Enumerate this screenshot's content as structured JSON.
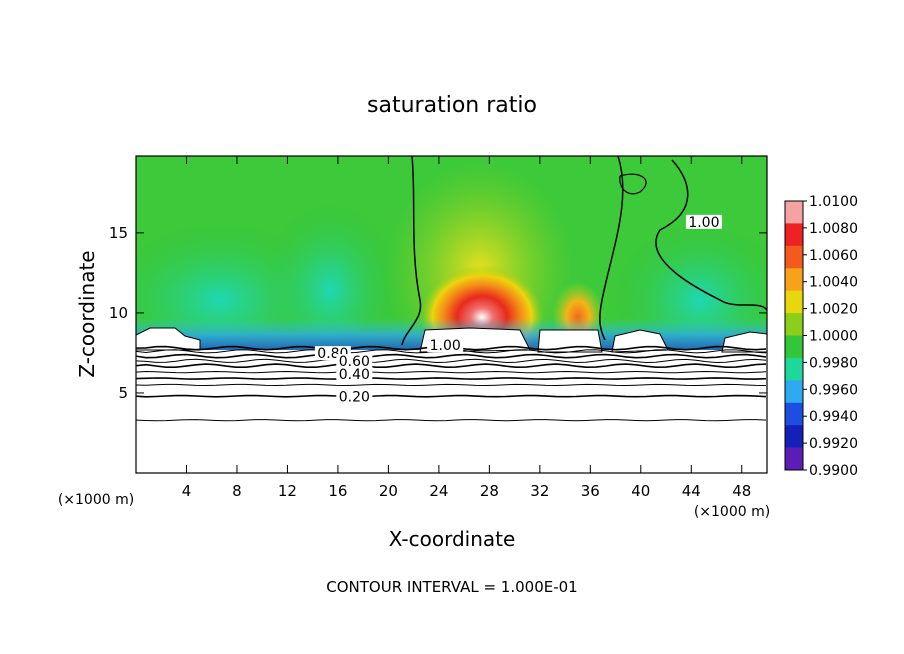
{
  "chart_data": {
    "type": "heatmap",
    "title": "saturation ratio",
    "xlabel": "X-coordinate",
    "ylabel": "Z-coordinate",
    "x_unit": "(×1000 m)",
    "y_unit": "(×1000 m)",
    "xlim": [
      0,
      50
    ],
    "ylim": [
      0,
      19.8
    ],
    "x_ticks": [
      4,
      8,
      12,
      16,
      20,
      24,
      28,
      32,
      36,
      40,
      44,
      48
    ],
    "y_ticks": [
      5,
      10,
      15
    ],
    "footer": "CONTOUR INTERVAL = 1.000E-01",
    "colorbar": {
      "labels": [
        "1.0100",
        "1.0080",
        "1.0060",
        "1.0040",
        "1.0020",
        "1.0000",
        "0.9980",
        "0.9960",
        "0.9940",
        "0.9920",
        "0.9900"
      ],
      "colors": [
        "#f4a2a2",
        "#ee2222",
        "#f25a1e",
        "#f6a21a",
        "#e8d60e",
        "#8ccf1a",
        "#34c63a",
        "#1ed89a",
        "#2eaaf0",
        "#1e4ee0",
        "#1420b8",
        "#5a1eb4"
      ]
    },
    "contour_labels": [
      {
        "text": "0.80",
        "x": 15.6,
        "z": 7.3
      },
      {
        "text": "0.60",
        "x": 17.3,
        "z": 6.8
      },
      {
        "text": "0.40",
        "x": 17.3,
        "z": 6.0
      },
      {
        "text": "0.20",
        "x": 17.3,
        "z": 4.6
      },
      {
        "text": "1.00",
        "x": 24.5,
        "z": 7.8
      },
      {
        "text": "1.00",
        "x": 45.0,
        "z": 15.5
      }
    ],
    "contour_levels_z": [
      3.3,
      4.8,
      5.5,
      5.9,
      6.3,
      6.7,
      7.0,
      7.3,
      7.6,
      7.8
    ]
  }
}
